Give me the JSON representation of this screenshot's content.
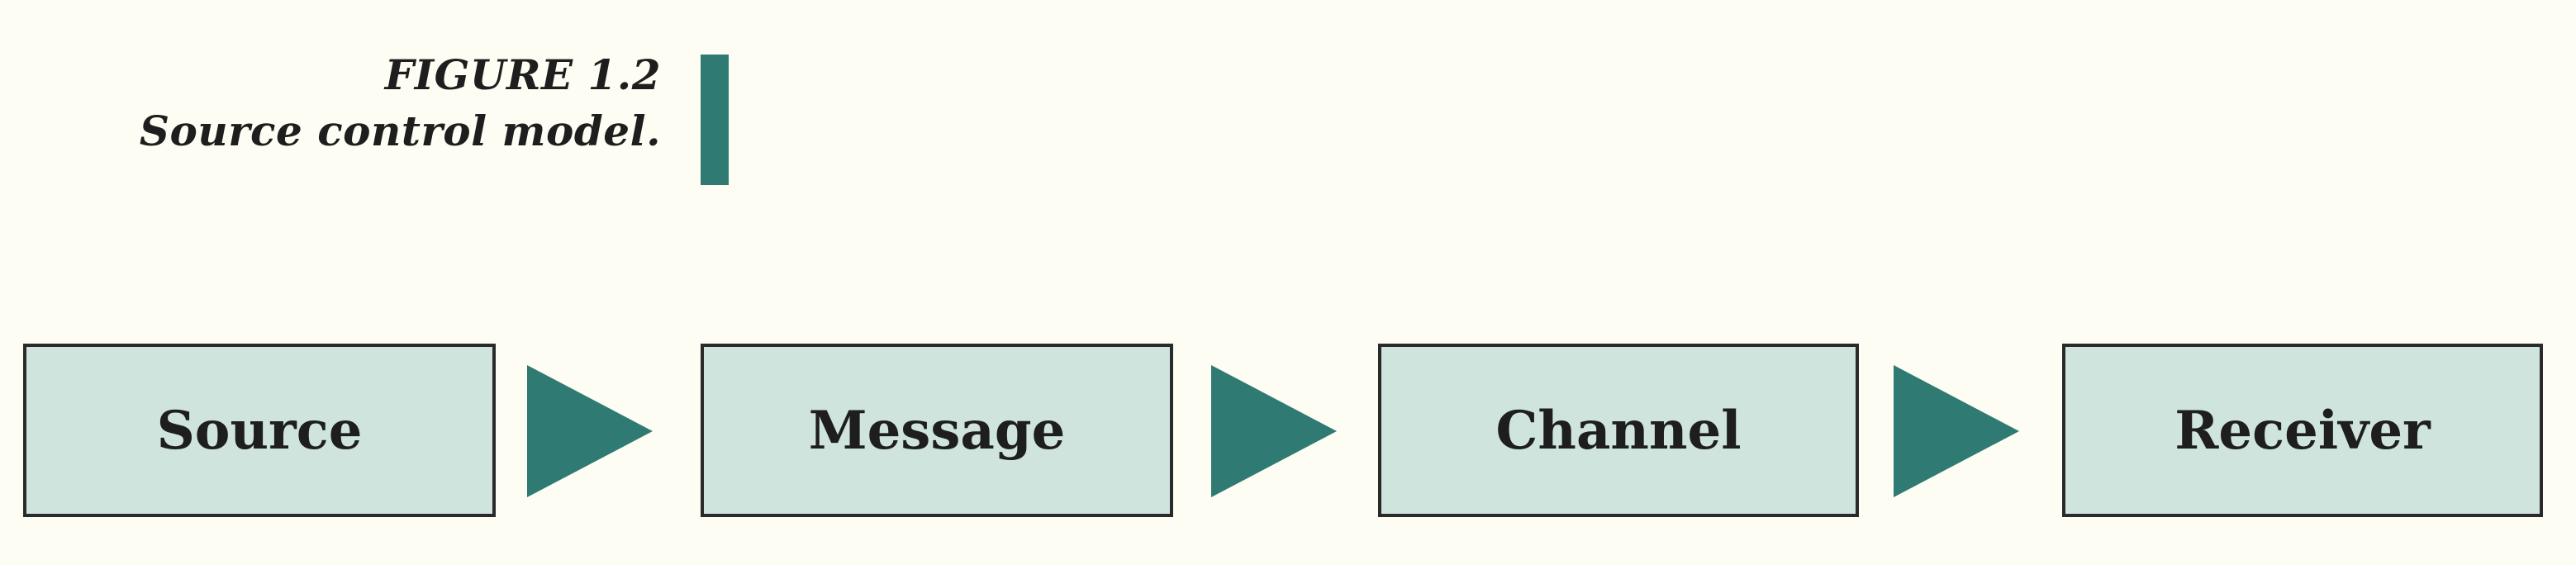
{
  "figure": {
    "label": "FIGURE 1.2",
    "caption": "Source control model."
  },
  "diagram": {
    "nodes": [
      "Source",
      "Message",
      "Channel",
      "Receiver"
    ],
    "edges": [
      {
        "from": "Source",
        "to": "Message"
      },
      {
        "from": "Message",
        "to": "Channel"
      },
      {
        "from": "Channel",
        "to": "Receiver"
      }
    ]
  },
  "colors": {
    "accent": "#2f7b73",
    "node_fill": "#cfe4dd",
    "node_border": "#2a2a2a",
    "background": "#fdfdf3"
  }
}
